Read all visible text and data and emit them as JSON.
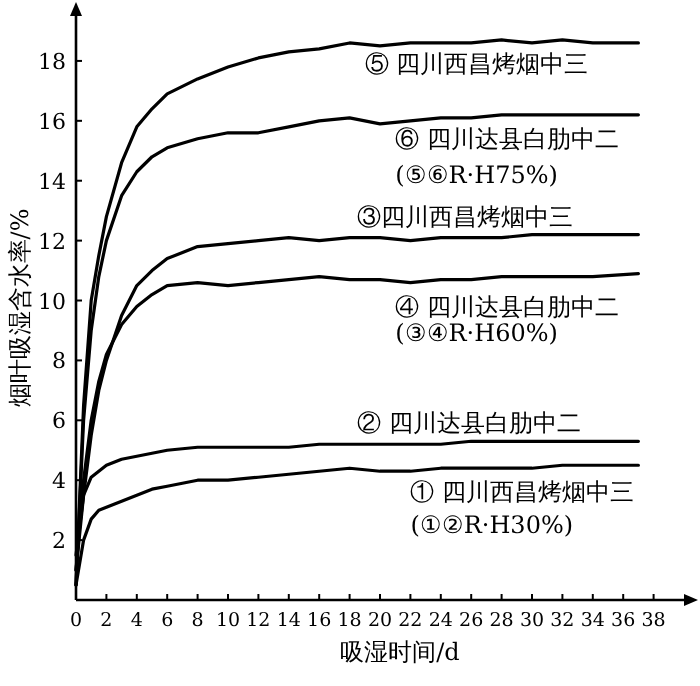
{
  "chart_data": {
    "type": "line",
    "xlabel": "吸湿时间/d",
    "ylabel": "烟叶吸湿含水率/%",
    "x": [
      0,
      0.5,
      1,
      1.5,
      2,
      3,
      4,
      5,
      6,
      8,
      10,
      12,
      14,
      16,
      18,
      20,
      22,
      24,
      26,
      28,
      30,
      32,
      34,
      37
    ],
    "xlim": [
      0,
      40
    ],
    "ylim": [
      0,
      19.5
    ],
    "xticks": [
      0,
      2,
      4,
      6,
      8,
      10,
      12,
      14,
      16,
      18,
      20,
      22,
      24,
      26,
      28,
      30,
      32,
      34,
      36,
      38
    ],
    "yticks": [
      2,
      4,
      6,
      8,
      10,
      12,
      14,
      16,
      18
    ],
    "grid": false,
    "marker": "none",
    "line_style": "solid",
    "series": [
      {
        "name": "① 四川西昌烤烟中三",
        "color": "#000000",
        "values": [
          0.5,
          2,
          2.7,
          3.0,
          3.1,
          3.3,
          3.5,
          3.7,
          3.8,
          4.0,
          4.0,
          4.1,
          4.2,
          4.3,
          4.4,
          4.3,
          4.3,
          4.4,
          4.4,
          4.4,
          4.4,
          4.5,
          4.5,
          4.5
        ]
      },
      {
        "name": "② 四川达县白肋中二",
        "color": "#000000",
        "values": [
          1.5,
          3.5,
          4.1,
          4.3,
          4.5,
          4.7,
          4.8,
          4.9,
          5.0,
          5.1,
          5.1,
          5.1,
          5.1,
          5.2,
          5.2,
          5.2,
          5.2,
          5.2,
          5.3,
          5.3,
          5.3,
          5.3,
          5.3,
          5.3
        ]
      },
      {
        "name": "③四川西昌烤烟中三",
        "color": "#000000",
        "values": [
          1,
          3.5,
          5.5,
          7,
          8,
          9.5,
          10.5,
          11.0,
          11.4,
          11.8,
          11.9,
          12.0,
          12.1,
          12.0,
          12.1,
          12.1,
          12.0,
          12.1,
          12.1,
          12.1,
          12.2,
          12.2,
          12.2,
          12.2
        ]
      },
      {
        "name": "④ 四川达县白肋中二",
        "color": "#000000",
        "values": [
          1,
          4,
          6,
          7.3,
          8.2,
          9.2,
          9.8,
          10.2,
          10.5,
          10.6,
          10.5,
          10.6,
          10.7,
          10.8,
          10.7,
          10.7,
          10.6,
          10.7,
          10.7,
          10.8,
          10.8,
          10.8,
          10.8,
          10.9
        ]
      },
      {
        "name": "⑤ 四川西昌烤烟中三",
        "color": "#000000",
        "values": [
          0.5,
          6.5,
          10,
          11.5,
          12.8,
          14.6,
          15.8,
          16.4,
          16.9,
          17.4,
          17.8,
          18.1,
          18.3,
          18.4,
          18.6,
          18.5,
          18.6,
          18.6,
          18.6,
          18.7,
          18.6,
          18.7,
          18.6,
          18.6
        ]
      },
      {
        "name": "⑥ 四川达县白肋中二",
        "color": "#000000",
        "values": [
          0.5,
          6,
          9,
          10.8,
          12,
          13.5,
          14.3,
          14.8,
          15.1,
          15.4,
          15.6,
          15.6,
          15.8,
          16.0,
          16.1,
          15.9,
          16.0,
          16.1,
          16.1,
          16.2,
          16.2,
          16.2,
          16.2,
          16.2
        ]
      }
    ],
    "annotations": [
      "(①②R·H30%)",
      "(③④R·H60%)",
      "(⑤⑥R·H75%)"
    ]
  }
}
